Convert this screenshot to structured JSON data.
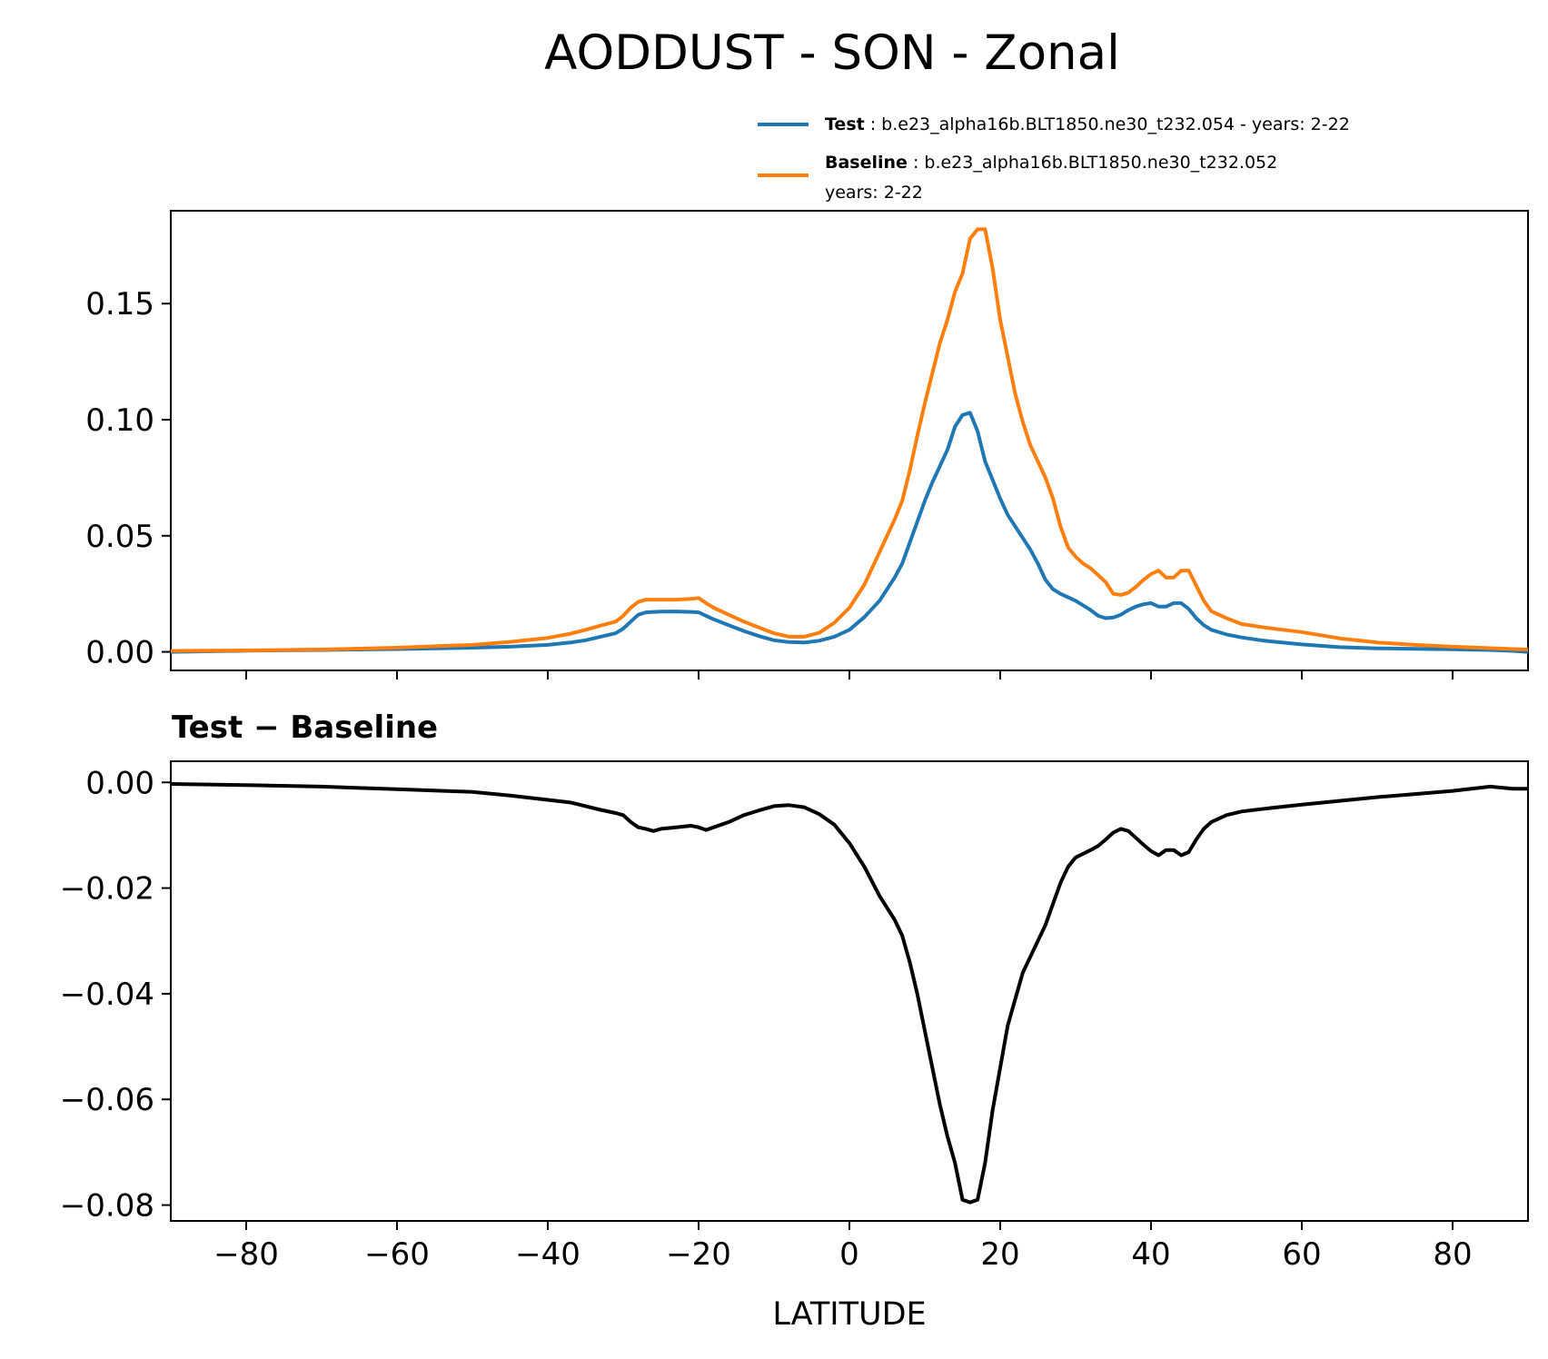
{
  "title": "AODDUST - SON - Zonal",
  "legend": {
    "test": {
      "name": "Test",
      "text": ": b.e23_alpha16b.BLT1850.ne30_t232.054 - years: 2-22",
      "color": "#1f77b4"
    },
    "baseline": {
      "name": "Baseline",
      "text": ": b.e23_alpha16b.BLT1850.ne30_t232.052",
      "text2": "years: 2-22",
      "color": "#ff7f0e"
    }
  },
  "diff_title": "Test − Baseline",
  "chart_data": [
    {
      "type": "line",
      "xlim": [
        -90,
        90
      ],
      "ylim": [
        -0.008,
        0.19
      ],
      "yticks": [
        0.0,
        0.05,
        0.1,
        0.15
      ],
      "ytick_labels": [
        "0.00",
        "0.05",
        "0.10",
        "0.15"
      ],
      "xticks": [
        -80,
        -60,
        -40,
        -20,
        0,
        20,
        40,
        60,
        80
      ],
      "series": [
        {
          "name": "Test",
          "color": "#1f77b4",
          "x": [
            -90,
            -80,
            -70,
            -60,
            -50,
            -45,
            -40,
            -37,
            -35,
            -33,
            -31,
            -30,
            -29,
            -28,
            -27,
            -26,
            -25,
            -23,
            -21,
            -20,
            -19,
            -18,
            -16,
            -14,
            -12,
            -10,
            -8,
            -6,
            -4,
            -2,
            0,
            2,
            4,
            6,
            7,
            8,
            9,
            10,
            11,
            12,
            13,
            14,
            15,
            16,
            17,
            18,
            19,
            20,
            21,
            22,
            23,
            24,
            25,
            26,
            27,
            28,
            29,
            30,
            31,
            32,
            33,
            34,
            35,
            36,
            37,
            38,
            39,
            40,
            41,
            42,
            43,
            44,
            45,
            46,
            47,
            48,
            50,
            52,
            55,
            60,
            65,
            70,
            75,
            80,
            85,
            88,
            90
          ],
          "values": [
            0.0,
            0.0005,
            0.0008,
            0.0012,
            0.0018,
            0.0022,
            0.003,
            0.004,
            0.005,
            0.0065,
            0.008,
            0.01,
            0.013,
            0.016,
            0.017,
            0.0172,
            0.0173,
            0.0174,
            0.0172,
            0.017,
            0.0155,
            0.014,
            0.0115,
            0.009,
            0.0068,
            0.005,
            0.0042,
            0.004,
            0.0048,
            0.0065,
            0.0095,
            0.015,
            0.022,
            0.032,
            0.038,
            0.047,
            0.056,
            0.065,
            0.073,
            0.08,
            0.087,
            0.097,
            0.102,
            0.103,
            0.095,
            0.082,
            0.074,
            0.066,
            0.059,
            0.054,
            0.049,
            0.044,
            0.038,
            0.031,
            0.027,
            0.025,
            0.0235,
            0.022,
            0.02,
            0.018,
            0.0155,
            0.0145,
            0.0148,
            0.016,
            0.018,
            0.0195,
            0.0205,
            0.021,
            0.0195,
            0.0195,
            0.021,
            0.021,
            0.0185,
            0.0145,
            0.0115,
            0.0095,
            0.0075,
            0.0062,
            0.0048,
            0.0032,
            0.002,
            0.0015,
            0.0013,
            0.0011,
            0.0008,
            0.0004,
            0.0
          ]
        },
        {
          "name": "Baseline",
          "color": "#ff7f0e",
          "x": [
            -90,
            -80,
            -70,
            -60,
            -50,
            -45,
            -40,
            -37,
            -35,
            -33,
            -31,
            -30,
            -29,
            -28,
            -27,
            -26,
            -25,
            -23,
            -21,
            -20,
            -19,
            -18,
            -16,
            -14,
            -12,
            -10,
            -8,
            -6,
            -4,
            -2,
            0,
            2,
            4,
            6,
            7,
            8,
            9,
            10,
            11,
            12,
            13,
            14,
            15,
            16,
            17,
            18,
            19,
            20,
            21,
            22,
            23,
            24,
            25,
            26,
            27,
            28,
            29,
            30,
            31,
            32,
            33,
            34,
            35,
            36,
            37,
            38,
            39,
            40,
            41,
            42,
            43,
            44,
            45,
            46,
            47,
            48,
            50,
            52,
            55,
            60,
            65,
            70,
            75,
            80,
            85,
            88,
            90
          ],
          "values": [
            0.0004,
            0.0006,
            0.001,
            0.0018,
            0.003,
            0.0043,
            0.006,
            0.0078,
            0.0095,
            0.0113,
            0.013,
            0.0155,
            0.019,
            0.0215,
            0.0225,
            0.0225,
            0.0225,
            0.0225,
            0.0228,
            0.0232,
            0.021,
            0.019,
            0.016,
            0.013,
            0.0105,
            0.008,
            0.0065,
            0.0065,
            0.0082,
            0.0125,
            0.019,
            0.029,
            0.043,
            0.057,
            0.065,
            0.078,
            0.093,
            0.107,
            0.12,
            0.133,
            0.143,
            0.155,
            0.163,
            0.178,
            0.182,
            0.182,
            0.165,
            0.143,
            0.127,
            0.111,
            0.099,
            0.089,
            0.082,
            0.075,
            0.066,
            0.054,
            0.045,
            0.041,
            0.038,
            0.036,
            0.033,
            0.03,
            0.025,
            0.0245,
            0.0255,
            0.028,
            0.031,
            0.0335,
            0.035,
            0.032,
            0.032,
            0.035,
            0.035,
            0.0285,
            0.022,
            0.0175,
            0.0145,
            0.012,
            0.0105,
            0.0085,
            0.0058,
            0.004,
            0.003,
            0.0022,
            0.0016,
            0.0012,
            0.001
          ]
        }
      ]
    },
    {
      "type": "line",
      "title": "Test − Baseline",
      "xlabel": "LATITUDE",
      "xlim": [
        -90,
        90
      ],
      "ylim": [
        -0.083,
        0.004
      ],
      "yticks": [
        0.0,
        -0.02,
        -0.04,
        -0.06,
        -0.08
      ],
      "ytick_labels": [
        "0.00",
        "−0.02",
        "−0.04",
        "−0.06",
        "−0.08"
      ],
      "xticks": [
        -80,
        -60,
        -40,
        -20,
        0,
        20,
        40,
        60,
        80
      ],
      "xtick_labels": [
        "−80",
        "−60",
        "−40",
        "−20",
        "0",
        "20",
        "40",
        "60",
        "80"
      ],
      "series": [
        {
          "name": "Test − Baseline",
          "color": "#000000",
          "x": [
            -90,
            -80,
            -70,
            -60,
            -50,
            -45,
            -40,
            -37,
            -35,
            -33,
            -31,
            -30,
            -29,
            -28,
            -27,
            -26,
            -25,
            -23,
            -21,
            -20,
            -19,
            -18,
            -16,
            -14,
            -12,
            -10,
            -8,
            -6,
            -4,
            -2,
            0,
            2,
            4,
            6,
            7,
            8,
            9,
            10,
            11,
            12,
            13,
            14,
            15,
            16,
            17,
            18,
            19,
            20,
            21,
            22,
            23,
            24,
            25,
            26,
            27,
            28,
            29,
            30,
            31,
            32,
            33,
            34,
            35,
            36,
            37,
            38,
            39,
            40,
            41,
            42,
            43,
            44,
            45,
            46,
            47,
            48,
            50,
            52,
            55,
            60,
            65,
            70,
            75,
            80,
            85,
            88,
            90
          ],
          "values": [
            -0.0003,
            -0.0005,
            -0.0008,
            -0.0013,
            -0.0018,
            -0.0025,
            -0.0033,
            -0.0038,
            -0.0045,
            -0.0052,
            -0.0058,
            -0.0062,
            -0.0075,
            -0.0085,
            -0.0088,
            -0.0092,
            -0.0088,
            -0.0085,
            -0.0082,
            -0.0085,
            -0.009,
            -0.0085,
            -0.0075,
            -0.0062,
            -0.0053,
            -0.0045,
            -0.0043,
            -0.0047,
            -0.006,
            -0.008,
            -0.0115,
            -0.016,
            -0.0215,
            -0.026,
            -0.029,
            -0.034,
            -0.04,
            -0.047,
            -0.054,
            -0.061,
            -0.067,
            -0.072,
            -0.079,
            -0.0795,
            -0.079,
            -0.072,
            -0.062,
            -0.054,
            -0.046,
            -0.041,
            -0.036,
            -0.033,
            -0.03,
            -0.027,
            -0.023,
            -0.019,
            -0.016,
            -0.0142,
            -0.0135,
            -0.0128,
            -0.012,
            -0.0108,
            -0.0095,
            -0.0088,
            -0.0092,
            -0.0105,
            -0.0118,
            -0.013,
            -0.0138,
            -0.0128,
            -0.0128,
            -0.0138,
            -0.0132,
            -0.0108,
            -0.0088,
            -0.0075,
            -0.0062,
            -0.0055,
            -0.005,
            -0.0042,
            -0.0035,
            -0.0028,
            -0.0022,
            -0.0016,
            -0.0008,
            -0.0012,
            -0.0012
          ]
        }
      ]
    }
  ]
}
